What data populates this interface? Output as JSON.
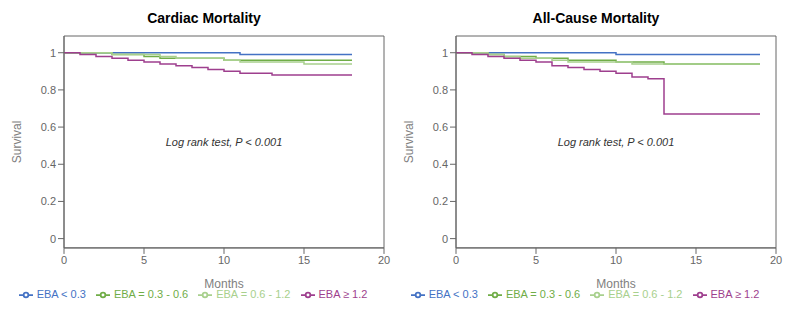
{
  "chart_data": [
    {
      "type": "line",
      "line_style": "step",
      "title": "Cardiac Mortality",
      "x_label": "Months",
      "y_label": "Survival",
      "xlim": [
        0,
        20
      ],
      "ylim": [
        -0.05,
        1.09
      ],
      "xticks": [
        0,
        5,
        10,
        15,
        20
      ],
      "yticks": [
        0.0,
        0.2,
        0.4,
        0.6,
        0.8,
        1.0
      ],
      "annotation": "Log rank test, P < 0.001",
      "grid": false,
      "legend": "bottom",
      "series": [
        {
          "name": "EBA < 0.3",
          "color": "#4472C4",
          "x": [
            0,
            0.5,
            1,
            2,
            3,
            4,
            5,
            6,
            7,
            8,
            9,
            10,
            11,
            12,
            13,
            14,
            15,
            16,
            17,
            18
          ],
          "values": [
            1.0,
            1.0,
            1.0,
            1.0,
            1.0,
            1.0,
            1.0,
            1.0,
            1.0,
            1.0,
            1.0,
            1.0,
            0.99,
            0.99,
            0.99,
            0.99,
            0.99,
            0.99,
            0.99,
            0.99
          ]
        },
        {
          "name": "EBA = 0.3 - 0.6",
          "color": "#70AD47",
          "x": [
            0,
            1,
            2,
            3,
            4,
            5,
            6,
            7,
            8,
            9,
            10,
            11,
            12,
            13,
            14,
            15,
            16,
            17,
            18
          ],
          "values": [
            1.0,
            1.0,
            1.0,
            0.99,
            0.99,
            0.98,
            0.97,
            0.97,
            0.97,
            0.97,
            0.96,
            0.96,
            0.96,
            0.96,
            0.96,
            0.96,
            0.96,
            0.96,
            0.96
          ]
        },
        {
          "name": "EBA = 0.6 - 1.2",
          "color": "#A8D08D",
          "x": [
            0,
            1,
            2,
            3,
            4,
            5,
            6,
            7,
            8,
            9,
            10,
            11,
            12,
            13,
            14,
            15,
            16,
            17,
            18
          ],
          "values": [
            1.0,
            1.0,
            1.0,
            0.99,
            0.99,
            0.99,
            0.98,
            0.97,
            0.97,
            0.97,
            0.96,
            0.95,
            0.95,
            0.95,
            0.95,
            0.94,
            0.94,
            0.94,
            0.94
          ]
        },
        {
          "name": "EBA ≥ 1.2",
          "color": "#9E3F8E",
          "x": [
            0,
            1,
            2,
            3,
            4,
            5,
            6,
            7,
            8,
            9,
            10,
            11,
            12,
            13,
            14,
            15,
            16,
            17,
            18
          ],
          "values": [
            1.0,
            0.99,
            0.98,
            0.97,
            0.96,
            0.95,
            0.94,
            0.93,
            0.92,
            0.91,
            0.9,
            0.89,
            0.89,
            0.88,
            0.88,
            0.88,
            0.88,
            0.88,
            0.88
          ]
        }
      ]
    },
    {
      "type": "line",
      "line_style": "step",
      "title": "All-Cause Mortality",
      "x_label": "Months",
      "y_label": "Survival",
      "xlim": [
        0,
        20
      ],
      "ylim": [
        -0.05,
        1.09
      ],
      "xticks": [
        0,
        5,
        10,
        15,
        20
      ],
      "yticks": [
        0.0,
        0.2,
        0.4,
        0.6,
        0.8,
        1.0
      ],
      "annotation": "Log rank test, P < 0.001",
      "grid": false,
      "legend": "bottom",
      "series": [
        {
          "name": "EBA < 0.3",
          "color": "#4472C4",
          "x": [
            0,
            1,
            2,
            3,
            4,
            5,
            6,
            7,
            8,
            9,
            10,
            11,
            12,
            13,
            14,
            15,
            16,
            17,
            18,
            19
          ],
          "values": [
            1.0,
            1.0,
            1.0,
            1.0,
            1.0,
            1.0,
            1.0,
            1.0,
            1.0,
            1.0,
            0.99,
            0.99,
            0.99,
            0.99,
            0.99,
            0.99,
            0.99,
            0.99,
            0.99,
            0.99
          ]
        },
        {
          "name": "EBA = 0.3 - 0.6",
          "color": "#70AD47",
          "x": [
            0,
            1,
            2,
            3,
            4,
            5,
            6,
            7,
            8,
            9,
            10,
            11,
            12,
            13,
            14,
            15,
            16,
            17,
            18,
            19
          ],
          "values": [
            1.0,
            1.0,
            0.99,
            0.98,
            0.98,
            0.97,
            0.97,
            0.96,
            0.96,
            0.96,
            0.95,
            0.95,
            0.95,
            0.94,
            0.94,
            0.94,
            0.94,
            0.94,
            0.94,
            0.94
          ]
        },
        {
          "name": "EBA = 0.6 - 1.2",
          "color": "#A8D08D",
          "x": [
            0,
            1,
            2,
            3,
            4,
            5,
            6,
            7,
            8,
            9,
            10,
            11,
            12,
            13,
            14,
            15,
            16,
            17,
            18,
            19
          ],
          "values": [
            1.0,
            1.0,
            0.99,
            0.98,
            0.97,
            0.97,
            0.96,
            0.95,
            0.95,
            0.95,
            0.95,
            0.94,
            0.94,
            0.94,
            0.94,
            0.94,
            0.94,
            0.94,
            0.94,
            0.94
          ]
        },
        {
          "name": "EBA ≥ 1.2",
          "color": "#9E3F8E",
          "x": [
            0,
            1,
            2,
            3,
            4,
            5,
            6,
            7,
            8,
            9,
            10,
            11,
            12,
            13,
            14,
            15,
            16,
            17,
            18,
            19
          ],
          "values": [
            1.0,
            0.99,
            0.98,
            0.97,
            0.96,
            0.95,
            0.93,
            0.92,
            0.91,
            0.9,
            0.89,
            0.87,
            0.86,
            0.67,
            0.67,
            0.67,
            0.67,
            0.67,
            0.67,
            0.67
          ]
        }
      ]
    }
  ]
}
